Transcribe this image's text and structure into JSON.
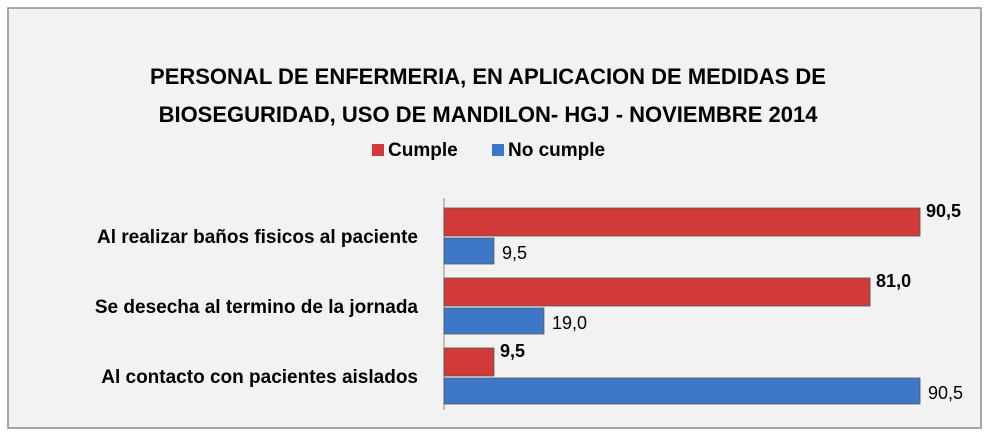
{
  "chart_data": {
    "type": "barh",
    "title": [
      "PERSONAL DE ENFERMERIA, EN APLICACION DE MEDIDAS DE",
      "BIOSEGURIDAD, USO DE MANDILON- HGJ - NOVIEMBRE 2014"
    ],
    "categories": [
      "Al realizar baños fisicos al paciente",
      "Se desecha al termino de la jornada",
      "Al contacto con pacientes aislados"
    ],
    "series": [
      {
        "name": "Cumple",
        "color": "#d23a3a",
        "values": [
          90.5,
          81.0,
          9.5
        ],
        "value_labels": [
          "90,5",
          "81,0",
          "9,5"
        ]
      },
      {
        "name": "No cumple",
        "color": "#3d77c7",
        "values": [
          9.5,
          19.0,
          90.5
        ],
        "value_labels": [
          "9,5",
          "19,0",
          "90,5"
        ]
      }
    ],
    "xlim": [
      0,
      100
    ],
    "legend": "top"
  }
}
